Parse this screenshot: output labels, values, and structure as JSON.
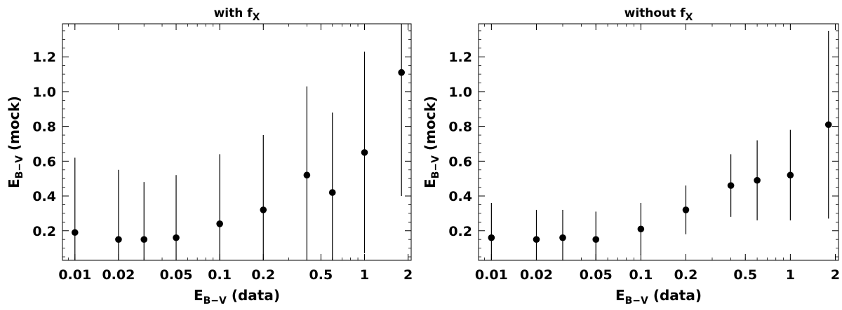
{
  "chart_data": [
    {
      "type": "scatter",
      "title": {
        "main": "with f",
        "sub": "X"
      },
      "xlabel": {
        "main": "E",
        "sub": "B−V",
        "rest": " (data)"
      },
      "ylabel": {
        "main": "E",
        "sub": "B−V",
        "rest": " (mock)"
      },
      "x_scale": "log",
      "xlim": [
        0.0082,
        2.1
      ],
      "ylim": [
        0.03,
        1.39
      ],
      "x_ticks": [
        0.01,
        0.02,
        0.05,
        0.1,
        0.2,
        0.5,
        1,
        2
      ],
      "x_tick_labels": [
        "0.01",
        "0.02",
        "0.05",
        "0.1",
        "0.2",
        "0.5",
        "1",
        "2"
      ],
      "y_ticks": [
        0.2,
        0.4,
        0.6,
        0.8,
        1.0,
        1.2
      ],
      "y_tick_labels": [
        "0.2",
        "0.4",
        "0.6",
        "0.8",
        "1.0",
        "1.2"
      ],
      "grid": false,
      "points": [
        {
          "x": 0.01,
          "y": 0.19,
          "y_low": 0.03,
          "y_high": 0.62
        },
        {
          "x": 0.02,
          "y": 0.15,
          "y_low": 0.03,
          "y_high": 0.55
        },
        {
          "x": 0.03,
          "y": 0.15,
          "y_low": 0.03,
          "y_high": 0.48
        },
        {
          "x": 0.05,
          "y": 0.16,
          "y_low": 0.03,
          "y_high": 0.52
        },
        {
          "x": 0.1,
          "y": 0.24,
          "y_low": 0.03,
          "y_high": 0.64
        },
        {
          "x": 0.2,
          "y": 0.32,
          "y_low": 0.03,
          "y_high": 0.75
        },
        {
          "x": 0.4,
          "y": 0.52,
          "y_low": 0.03,
          "y_high": 1.03
        },
        {
          "x": 0.6,
          "y": 0.42,
          "y_low": 0.03,
          "y_high": 0.88
        },
        {
          "x": 1.0,
          "y": 0.65,
          "y_low": 0.07,
          "y_high": 1.23
        },
        {
          "x": 1.8,
          "y": 1.11,
          "y_low": 0.4,
          "y_high": 1.39
        }
      ]
    },
    {
      "type": "scatter",
      "title": {
        "main": "without f",
        "sub": "X"
      },
      "xlabel": {
        "main": "E",
        "sub": "B−V",
        "rest": " (data)"
      },
      "ylabel": {
        "main": "E",
        "sub": "B−V",
        "rest": " (mock)"
      },
      "x_scale": "log",
      "xlim": [
        0.0082,
        2.1
      ],
      "ylim": [
        0.03,
        1.39
      ],
      "x_ticks": [
        0.01,
        0.02,
        0.05,
        0.1,
        0.2,
        0.5,
        1,
        2
      ],
      "x_tick_labels": [
        "0.01",
        "0.02",
        "0.05",
        "0.1",
        "0.2",
        "0.5",
        "1",
        "2"
      ],
      "y_ticks": [
        0.2,
        0.4,
        0.6,
        0.8,
        1.0,
        1.2
      ],
      "y_tick_labels": [
        "0.2",
        "0.4",
        "0.6",
        "0.8",
        "1.0",
        "1.2"
      ],
      "grid": false,
      "points": [
        {
          "x": 0.01,
          "y": 0.16,
          "y_low": 0.03,
          "y_high": 0.36
        },
        {
          "x": 0.02,
          "y": 0.15,
          "y_low": 0.03,
          "y_high": 0.32
        },
        {
          "x": 0.03,
          "y": 0.16,
          "y_low": 0.03,
          "y_high": 0.32
        },
        {
          "x": 0.05,
          "y": 0.15,
          "y_low": 0.03,
          "y_high": 0.31
        },
        {
          "x": 0.1,
          "y": 0.21,
          "y_low": 0.06,
          "y_high": 0.36
        },
        {
          "x": 0.2,
          "y": 0.32,
          "y_low": 0.18,
          "y_high": 0.46
        },
        {
          "x": 0.4,
          "y": 0.46,
          "y_low": 0.28,
          "y_high": 0.64
        },
        {
          "x": 0.6,
          "y": 0.49,
          "y_low": 0.26,
          "y_high": 0.72
        },
        {
          "x": 1.0,
          "y": 0.52,
          "y_low": 0.26,
          "y_high": 0.78
        },
        {
          "x": 1.8,
          "y": 0.81,
          "y_low": 0.27,
          "y_high": 1.35
        }
      ]
    }
  ]
}
